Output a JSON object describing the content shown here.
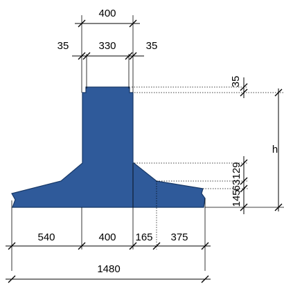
{
  "colors": {
    "section_fill": "#2f5a9a",
    "section_stroke": "#163766",
    "line": "#000000"
  },
  "dimensions": {
    "top_width": "400",
    "left_chamfer": "35",
    "top_inner": "330",
    "right_chamfer": "35",
    "vertical_top": "35",
    "height_label": "h",
    "vertical_129": "129",
    "vertical_63": "63",
    "vertical_145": "145",
    "bottom_540": "540",
    "bottom_400": "400",
    "bottom_165": "165",
    "bottom_375": "375",
    "total_width": "1480"
  }
}
